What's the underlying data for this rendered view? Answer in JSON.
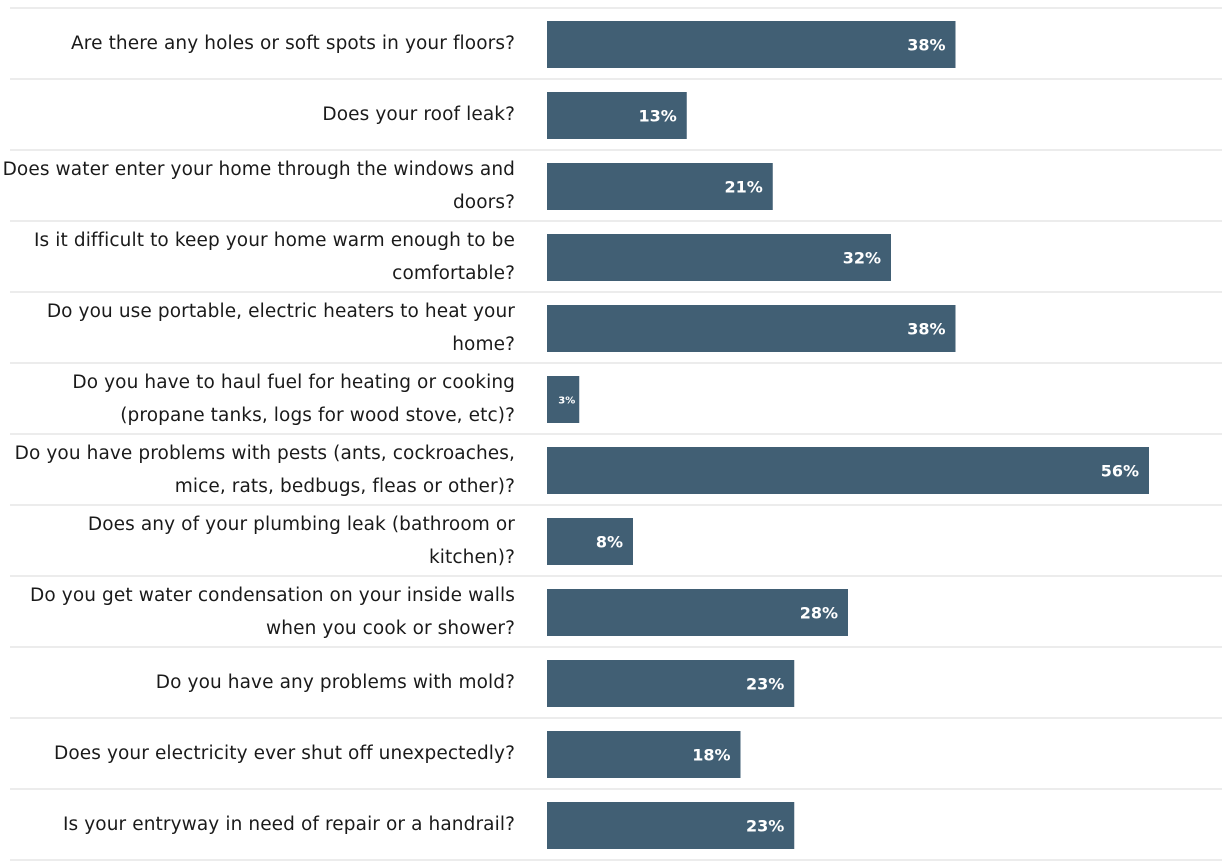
{
  "chart_data": {
    "type": "bar",
    "orientation": "horizontal",
    "categories": [
      "Are there any holes or soft spots in your floors?",
      "Does your roof leak?",
      "Does water enter your home through the windows and doors?",
      "Is it difficult to keep your home warm enough to be comfortable?",
      "Do you use portable, electric heaters to heat your home?",
      "Do you have to haul fuel for heating or cooking (propane tanks, logs for wood stove, etc)?",
      "Do you have problems with pests (ants, cockroaches, mice, rats, bedbugs, fleas or other)?",
      "Does any of your plumbing leak (bathroom or kitchen)?",
      "Do you get water condensation on your inside walls when you cook or shower?",
      "Do you have any problems with mold?",
      "Does your electricity ever shut off unexpectedly?",
      "Is your entryway in need of repair or a handrail?"
    ],
    "values": [
      38,
      13,
      21,
      32,
      38,
      3,
      56,
      8,
      28,
      23,
      18,
      23
    ],
    "value_labels": [
      "38%",
      "13%",
      "21%",
      "32%",
      "38%",
      "3%",
      "56%",
      "8%",
      "28%",
      "23%",
      "18%",
      "23%"
    ],
    "xlim": [
      0,
      60
    ],
    "grid": false,
    "legend": "none",
    "colors": {
      "bar": "#415f74",
      "bar_label": "#ffffff",
      "separator": "#d9d9d9"
    }
  }
}
